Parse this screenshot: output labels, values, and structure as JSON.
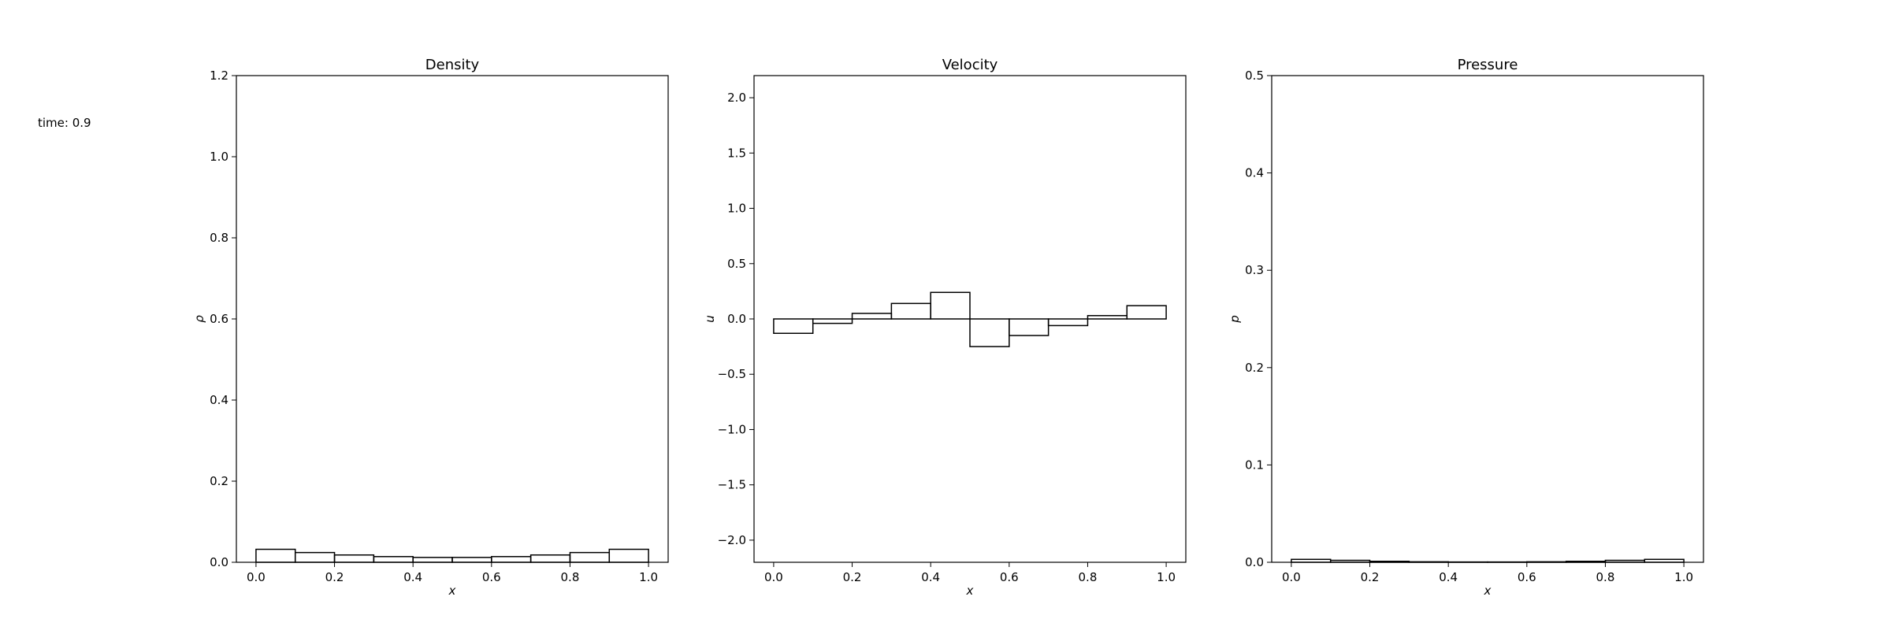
{
  "time_label": "time: 0.9",
  "chart_data": [
    {
      "type": "bar",
      "title": "Density",
      "xlabel": "x",
      "ylabel": "ρ",
      "xlim": [
        -0.05,
        1.05
      ],
      "ylim": [
        0,
        1.2
      ],
      "xticks": [
        "0.0",
        "0.2",
        "0.4",
        "0.6",
        "0.8",
        "1.0"
      ],
      "yticks": [
        "0.0",
        "0.2",
        "0.4",
        "0.6",
        "0.8",
        "1.0",
        "1.2"
      ],
      "bin_edges": [
        0.0,
        0.1,
        0.2,
        0.3,
        0.4,
        0.5,
        0.6,
        0.7,
        0.8,
        0.9,
        1.0
      ],
      "values": [
        0.032,
        0.024,
        0.018,
        0.014,
        0.012,
        0.012,
        0.014,
        0.018,
        0.024,
        0.032
      ]
    },
    {
      "type": "bar",
      "title": "Velocity",
      "xlabel": "x",
      "ylabel": "u",
      "xlim": [
        -0.05,
        1.05
      ],
      "ylim": [
        -2.2,
        2.2
      ],
      "xticks": [
        "0.0",
        "0.2",
        "0.4",
        "0.6",
        "0.8",
        "1.0"
      ],
      "yticks": [
        "−2.0",
        "−1.5",
        "−1.0",
        "−0.5",
        "0.0",
        "0.5",
        "1.0",
        "1.5",
        "2.0"
      ],
      "bin_edges": [
        0.0,
        0.1,
        0.2,
        0.3,
        0.4,
        0.5,
        0.6,
        0.7,
        0.8,
        0.9,
        1.0
      ],
      "values": [
        -0.13,
        -0.04,
        0.05,
        0.14,
        0.24,
        -0.25,
        -0.15,
        -0.06,
        0.03,
        0.12
      ]
    },
    {
      "type": "bar",
      "title": "Pressure",
      "xlabel": "x",
      "ylabel": "p",
      "xlim": [
        -0.05,
        1.05
      ],
      "ylim": [
        0,
        0.5
      ],
      "xticks": [
        "0.0",
        "0.2",
        "0.4",
        "0.6",
        "0.8",
        "1.0"
      ],
      "yticks": [
        "0.0",
        "0.1",
        "0.2",
        "0.3",
        "0.4",
        "0.5"
      ],
      "bin_edges": [
        0.0,
        0.1,
        0.2,
        0.3,
        0.4,
        0.5,
        0.6,
        0.7,
        0.8,
        0.9,
        1.0
      ],
      "values": [
        0.003,
        0.002,
        0.001,
        0.0005,
        0.0003,
        0.0003,
        0.0005,
        0.001,
        0.002,
        0.003
      ]
    }
  ]
}
